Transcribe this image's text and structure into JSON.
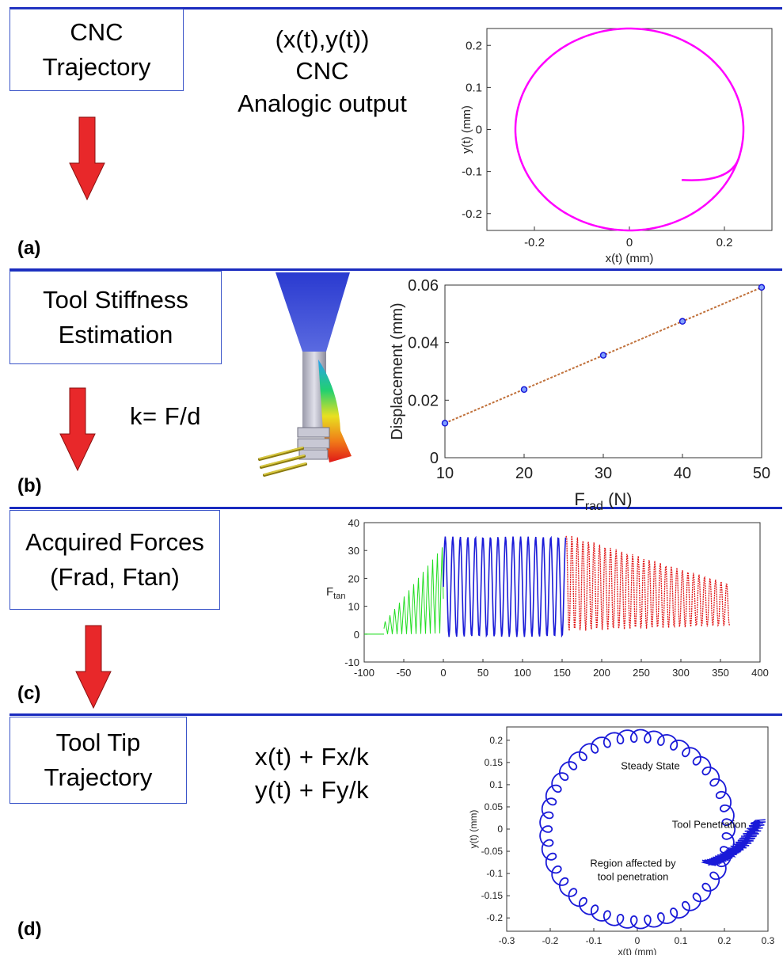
{
  "panels": {
    "a": {
      "box_lines": [
        "CNC",
        "Trajectory"
      ],
      "middle_lines": [
        "(x(t),y(t))",
        "CNC",
        "Analogic output"
      ],
      "label": "(a)"
    },
    "b": {
      "box_lines": [
        "Tool Stiffness",
        "Estimation"
      ],
      "formula": "k= F/d",
      "label": "(b)"
    },
    "c": {
      "box_lines": [
        "Acquired Forces",
        "(Frad, Ftan)"
      ],
      "label": "(c)"
    },
    "d": {
      "box_lines": [
        "Tool Tip",
        "Trajectory"
      ],
      "formula_lines": [
        "x(t) + Fx/k",
        "y(t) + Fy/k"
      ],
      "label": "(d)"
    }
  },
  "colors": {
    "rule": "#1a2bbf",
    "box_border": "#3a54c8",
    "arrow": "#e8282a"
  },
  "icons": [
    "down-arrow-icon",
    "tool-fem-render"
  ],
  "chart_data": [
    {
      "id": "cnc-trajectory",
      "type": "line",
      "title": "",
      "xlabel": "x(t) (mm)",
      "ylabel": "y(t) (mm)",
      "xlim": [
        -0.3,
        0.3
      ],
      "ylim": [
        -0.24,
        0.24
      ],
      "xticks": [
        "-0.2",
        "0",
        "0.2"
      ],
      "yticks": [
        "-0.2",
        "-0.1",
        "0",
        "0.1",
        "0.2"
      ],
      "series": [
        {
          "color": "#ff00ff",
          "shape": "circle",
          "radius": 0.24,
          "center": [
            0,
            0
          ],
          "entry_point": [
            0.11,
            -0.12
          ]
        }
      ]
    },
    {
      "id": "stiffness",
      "type": "scatter",
      "title": "",
      "xlabel": "F",
      "xlabel_sub": "rad",
      "xlabel_unit": " (N)",
      "ylabel": "Displacement (mm)",
      "xlim": [
        10,
        50
      ],
      "ylim": [
        0,
        0.06
      ],
      "xticks": [
        "10",
        "20",
        "30",
        "40",
        "50"
      ],
      "yticks": [
        "0",
        "0.02",
        "0.04",
        "0.06"
      ],
      "x": [
        10,
        20,
        30,
        40,
        50
      ],
      "y": [
        0.012,
        0.0237,
        0.0356,
        0.0474,
        0.0592
      ]
    },
    {
      "id": "tangential-force",
      "type": "line",
      "title": "",
      "xlabel": "",
      "ylabel": "F",
      "ylabel_sub": "tan",
      "xlim": [
        -100,
        400
      ],
      "ylim": [
        -10,
        40
      ],
      "xticks": [
        "-100",
        "-50",
        "0",
        "50",
        "100",
        "150",
        "200",
        "250",
        "300",
        "350",
        "400"
      ],
      "yticks": [
        "-10",
        "0",
        "10",
        "20",
        "30",
        "40"
      ],
      "series": [
        {
          "segment": "entry",
          "x_range": [
            -100,
            0
          ],
          "color": "#22dd22",
          "peak": 32
        },
        {
          "segment": "steady",
          "x_range": [
            0,
            155
          ],
          "color": "#1a1ad8",
          "peak": 36
        },
        {
          "segment": "exit",
          "x_range": [
            155,
            362
          ],
          "color": "#e01818",
          "peak_start": 36,
          "peak_end": 20
        }
      ]
    },
    {
      "id": "tool-tip-trajectory",
      "type": "line",
      "title": "",
      "xlabel": "x(t) (mm)",
      "ylabel": "y(t) (mm)",
      "xlim": [
        -0.3,
        0.3
      ],
      "ylim": [
        -0.23,
        0.23
      ],
      "xticks": [
        "-0.3",
        "-0.2",
        "-0.1",
        "0",
        "0.1",
        "0.2",
        "0.3"
      ],
      "yticks": [
        "-0.2",
        "-0.15",
        "-0.1",
        "-0.05",
        "0",
        "0.05",
        "0.1",
        "0.15",
        "0.2"
      ],
      "annotations": [
        "Steady State",
        "Tool Penetration",
        "Region affected by",
        "tool penetration"
      ],
      "series": [
        {
          "color": "#1a1ad8",
          "radius": 0.21,
          "center": [
            0,
            0
          ]
        }
      ]
    }
  ]
}
